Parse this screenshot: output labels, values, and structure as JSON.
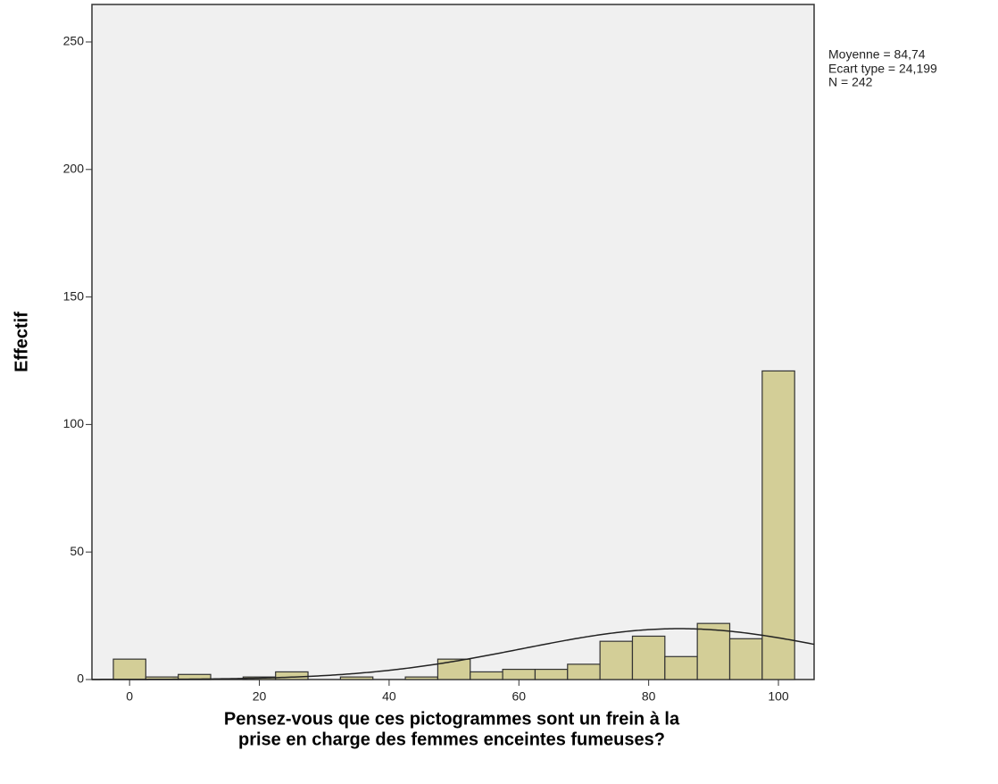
{
  "chart_data": {
    "type": "histogram",
    "ylabel": "Effectif",
    "xlabel": [
      "Pensez-vous que ces pictogrammes  sont un frein à la",
      "prise en charge des femmes enceintes fumeuses?"
    ],
    "annotations": [
      "Moyenne = 84,74",
      "Ecart type = 24,199",
      "N = 242"
    ],
    "bins": [
      -2.5,
      2.5,
      7.5,
      12.5,
      17.5,
      22.5,
      27.5,
      32.5,
      37.5,
      42.5,
      47.5,
      52.5,
      57.5,
      62.5,
      67.5,
      72.5,
      77.5,
      82.5,
      87.5,
      92.5,
      97.5,
      102.5
    ],
    "counts": [
      8,
      1,
      2,
      0,
      1,
      3,
      0,
      1,
      0,
      1,
      8,
      3,
      4,
      4,
      6,
      15,
      17,
      9,
      22,
      16,
      121
    ],
    "color": "#d3ce97",
    "normal_curve": {
      "mean": 84.74,
      "sd": 24.199,
      "n": 242
    },
    "xlim": [
      -5.8,
      105.5
    ],
    "xticks": [
      0,
      20,
      40,
      60,
      80,
      100
    ],
    "ylim": [
      0,
      264.7
    ],
    "yticks": [
      0,
      50,
      100,
      150,
      200,
      250
    ]
  }
}
